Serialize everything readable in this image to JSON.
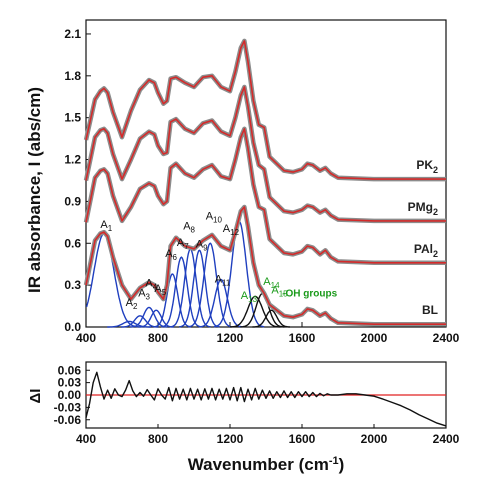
{
  "colors": {
    "frame": "#111111",
    "experimental": "#8c8c8c",
    "fit": "#d42a2a",
    "component_blue": "#1f3fbf",
    "component_black": "#111111",
    "residual": "#111111",
    "zero_line": "#e02020",
    "green_label": "#1a9a1a"
  },
  "chart_data": [
    {
      "type": "line",
      "ylabel": "IR absorbance, I (abs/cm)",
      "xlim": [
        400,
        2400
      ],
      "ylim": [
        0,
        2.2
      ],
      "x_ticks": [
        "400",
        "800",
        "1200",
        "1600",
        "2000",
        "2400"
      ],
      "y_ticks": [
        "0.0",
        "0.3",
        "0.6",
        "0.9",
        "1.2",
        "1.5",
        "1.8",
        "2.1"
      ],
      "series": [
        {
          "name": "PK2",
          "label": "PK",
          "label_sub": "2",
          "offset": 1.05,
          "x": [
            400,
            450,
            480,
            500,
            520,
            550,
            600,
            650,
            700,
            750,
            780,
            800,
            830,
            850,
            870,
            900,
            950,
            1000,
            1050,
            1100,
            1150,
            1200,
            1230,
            1260,
            1280,
            1300,
            1330,
            1360,
            1390,
            1420,
            1500,
            1550,
            1600,
            1630,
            1660,
            1700,
            1730,
            1760,
            1800,
            2000,
            2200,
            2400
          ],
          "y": [
            1.34,
            1.63,
            1.69,
            1.71,
            1.68,
            1.54,
            1.36,
            1.55,
            1.7,
            1.77,
            1.75,
            1.68,
            1.6,
            1.62,
            1.78,
            1.79,
            1.75,
            1.72,
            1.79,
            1.8,
            1.72,
            1.69,
            1.83,
            2.0,
            2.05,
            1.9,
            1.62,
            1.45,
            1.43,
            1.22,
            1.12,
            1.11,
            1.13,
            1.17,
            1.16,
            1.12,
            1.14,
            1.1,
            1.07,
            1.06,
            1.06,
            1.06
          ]
        },
        {
          "name": "PMg2",
          "label": "PMg",
          "label_sub": "2",
          "offset": 0.75,
          "x": [
            400,
            450,
            480,
            500,
            520,
            550,
            600,
            650,
            700,
            750,
            780,
            800,
            830,
            850,
            870,
            900,
            950,
            1000,
            1050,
            1100,
            1150,
            1200,
            1230,
            1260,
            1280,
            1300,
            1330,
            1360,
            1390,
            1420,
            1500,
            1550,
            1600,
            1630,
            1660,
            1700,
            1730,
            1760,
            1800,
            2000,
            2200,
            2400
          ],
          "y": [
            1.05,
            1.36,
            1.41,
            1.42,
            1.39,
            1.24,
            1.06,
            1.2,
            1.35,
            1.4,
            1.38,
            1.3,
            1.24,
            1.25,
            1.47,
            1.49,
            1.42,
            1.39,
            1.46,
            1.48,
            1.4,
            1.37,
            1.5,
            1.66,
            1.72,
            1.58,
            1.32,
            1.16,
            1.13,
            0.93,
            0.83,
            0.82,
            0.84,
            0.87,
            0.86,
            0.82,
            0.84,
            0.8,
            0.77,
            0.76,
            0.76,
            0.76
          ]
        },
        {
          "name": "PAl2",
          "label": "PAl",
          "label_sub": "2",
          "offset": 0.45,
          "x": [
            400,
            450,
            480,
            500,
            520,
            550,
            600,
            650,
            700,
            750,
            780,
            800,
            830,
            850,
            870,
            900,
            950,
            1000,
            1050,
            1100,
            1150,
            1200,
            1230,
            1260,
            1280,
            1300,
            1330,
            1360,
            1390,
            1420,
            1500,
            1550,
            1600,
            1630,
            1660,
            1700,
            1730,
            1760,
            1800,
            2000,
            2200,
            2400
          ],
          "y": [
            0.75,
            1.07,
            1.12,
            1.13,
            1.1,
            0.94,
            0.76,
            0.86,
            0.99,
            1.03,
            1.01,
            0.94,
            0.88,
            0.9,
            1.14,
            1.17,
            1.1,
            1.07,
            1.13,
            1.16,
            1.08,
            1.06,
            1.2,
            1.36,
            1.42,
            1.28,
            1.02,
            0.86,
            0.84,
            0.63,
            0.53,
            0.52,
            0.54,
            0.58,
            0.57,
            0.52,
            0.55,
            0.5,
            0.47,
            0.46,
            0.46,
            0.46
          ]
        },
        {
          "name": "BL",
          "label": "BL",
          "label_sub": "",
          "offset": 0,
          "x": [
            400,
            450,
            480,
            500,
            520,
            550,
            600,
            650,
            700,
            750,
            780,
            800,
            830,
            850,
            870,
            900,
            950,
            1000,
            1050,
            1100,
            1150,
            1200,
            1230,
            1260,
            1280,
            1300,
            1330,
            1360,
            1390,
            1420,
            1500,
            1550,
            1600,
            1630,
            1660,
            1700,
            1730,
            1760,
            1800,
            2000,
            2200,
            2400
          ],
          "y": [
            0.3,
            0.62,
            0.67,
            0.68,
            0.65,
            0.5,
            0.3,
            0.2,
            0.28,
            0.32,
            0.3,
            0.25,
            0.2,
            0.3,
            0.58,
            0.64,
            0.58,
            0.56,
            0.62,
            0.66,
            0.58,
            0.55,
            0.68,
            0.83,
            0.86,
            0.72,
            0.46,
            0.3,
            0.24,
            0.16,
            0.08,
            0.07,
            0.09,
            0.13,
            0.12,
            0.08,
            0.1,
            0.06,
            0.03,
            0.02,
            0.02,
            0.02
          ]
        }
      ],
      "components": [
        {
          "label": "A",
          "sub": "1",
          "center": 500,
          "height": 0.67,
          "width": 55,
          "group": "blue",
          "label_pos": [
            480,
            0.71
          ],
          "label_color": "black"
        },
        {
          "label": "A",
          "sub": "2",
          "center": 640,
          "height": 0.04,
          "width": 35,
          "group": "blue",
          "label_pos": [
            620,
            0.15
          ],
          "label_color": "black"
        },
        {
          "label": "A",
          "sub": "3",
          "center": 700,
          "height": 0.08,
          "width": 30,
          "group": "blue",
          "label_pos": [
            690,
            0.22
          ],
          "label_color": "black"
        },
        {
          "label": "A",
          "sub": "4",
          "center": 750,
          "height": 0.14,
          "width": 30,
          "group": "blue",
          "label_pos": [
            730,
            0.29
          ],
          "label_color": "black"
        },
        {
          "label": "A",
          "sub": "5",
          "center": 790,
          "height": 0.12,
          "width": 28,
          "group": "blue",
          "label_pos": [
            780,
            0.25
          ],
          "label_color": "black"
        },
        {
          "label": "A",
          "sub": "6",
          "center": 880,
          "height": 0.38,
          "width": 30,
          "group": "blue",
          "label_pos": [
            840,
            0.5
          ],
          "label_color": "black"
        },
        {
          "label": "A",
          "sub": "7",
          "center": 930,
          "height": 0.5,
          "width": 32,
          "group": "blue",
          "label_pos": [
            905,
            0.58
          ],
          "label_color": "black"
        },
        {
          "label": "A",
          "sub": "8",
          "center": 980,
          "height": 0.56,
          "width": 32,
          "group": "blue",
          "label_pos": [
            940,
            0.7
          ],
          "label_color": "black"
        },
        {
          "label": "A",
          "sub": "9",
          "center": 1030,
          "height": 0.55,
          "width": 32,
          "group": "blue",
          "label_pos": [
            1010,
            0.57
          ],
          "label_color": "black"
        },
        {
          "label": "A",
          "sub": "10",
          "center": 1090,
          "height": 0.6,
          "width": 35,
          "group": "blue",
          "label_pos": [
            1065,
            0.77
          ],
          "label_color": "black"
        },
        {
          "label": "A",
          "sub": "11",
          "center": 1150,
          "height": 0.34,
          "width": 35,
          "group": "blue",
          "label_pos": [
            1115,
            0.32
          ],
          "label_color": "black"
        },
        {
          "label": "A",
          "sub": "12",
          "center": 1250,
          "height": 0.76,
          "width": 40,
          "group": "blue",
          "label_pos": [
            1160,
            0.68
          ],
          "label_color": "black"
        },
        {
          "label": "A",
          "sub": "13",
          "center": 1340,
          "height": 0.22,
          "width": 40,
          "group": "black",
          "label_pos": [
            1260,
            0.2
          ],
          "label_color": "green"
        },
        {
          "label": "A",
          "sub": "14",
          "center": 1380,
          "height": 0.24,
          "width": 35,
          "group": "black",
          "label_pos": [
            1385,
            0.3
          ],
          "label_color": "green"
        },
        {
          "label": "A",
          "sub": "15",
          "center": 1430,
          "height": 0.12,
          "width": 30,
          "group": "black",
          "label_pos": [
            1430,
            0.24
          ],
          "label_color": "green"
        }
      ],
      "annotation": "-OH groups"
    },
    {
      "type": "line",
      "xlabel": "Wavenumber (cm",
      "xlabel_sup": "-1",
      "xlabel_end": ")",
      "ylabel": "ΔI",
      "xlim": [
        400,
        2400
      ],
      "ylim": [
        -0.08,
        0.08
      ],
      "x_ticks": [
        "400",
        "800",
        "1200",
        "1600",
        "2000",
        "2400"
      ],
      "y_ticks": [
        "0.06",
        "0.03",
        "0.00",
        "-0.03",
        "-0.06"
      ],
      "series": [
        {
          "name": "residual",
          "x": [
            400,
            420,
            440,
            460,
            480,
            500,
            520,
            540,
            560,
            580,
            600,
            620,
            640,
            660,
            680,
            700,
            720,
            740,
            760,
            780,
            800,
            820,
            840,
            860,
            880,
            900,
            920,
            940,
            960,
            980,
            1000,
            1020,
            1040,
            1060,
            1080,
            1100,
            1120,
            1140,
            1160,
            1180,
            1200,
            1220,
            1240,
            1260,
            1280,
            1300,
            1320,
            1340,
            1360,
            1380,
            1400,
            1420,
            1440,
            1460,
            1480,
            1500,
            1520,
            1540,
            1560,
            1580,
            1600,
            1620,
            1640,
            1660,
            1680,
            1700,
            1720,
            1740,
            1760,
            1800,
            1850,
            1900,
            1950,
            2000,
            2050,
            2100,
            2150,
            2200,
            2250,
            2300,
            2350,
            2400
          ],
          "y": [
            -0.055,
            -0.02,
            0.03,
            0.055,
            0.02,
            -0.01,
            0.012,
            -0.008,
            0.015,
            0.0,
            -0.004,
            0.012,
            0.035,
            0.01,
            -0.004,
            0.006,
            -0.003,
            0.013,
            0.0,
            -0.012,
            0.015,
            0.0,
            -0.01,
            0.018,
            -0.014,
            0.016,
            -0.01,
            0.014,
            -0.012,
            0.016,
            -0.01,
            0.014,
            -0.012,
            0.015,
            -0.01,
            0.016,
            -0.012,
            0.014,
            -0.01,
            0.016,
            -0.012,
            0.018,
            -0.014,
            0.018,
            -0.016,
            0.014,
            -0.012,
            0.016,
            -0.01,
            0.012,
            -0.008,
            0.01,
            -0.008,
            0.008,
            -0.006,
            0.01,
            -0.006,
            0.008,
            -0.006,
            0.008,
            -0.004,
            0.008,
            -0.004,
            0.006,
            -0.004,
            0.004,
            -0.002,
            0.003,
            0.0,
            0.0,
            0.003,
            0.003,
            0.0,
            -0.003,
            -0.01,
            -0.018,
            -0.026,
            -0.036,
            -0.048,
            -0.058,
            -0.068,
            -0.075
          ]
        }
      ]
    }
  ]
}
